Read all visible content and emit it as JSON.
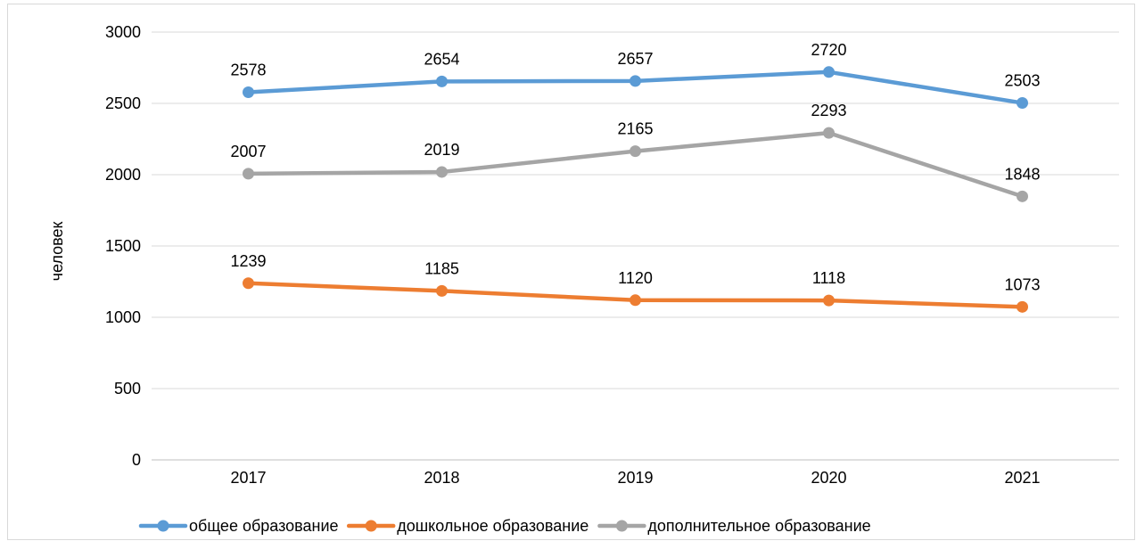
{
  "chart_data": {
    "type": "line",
    "categories": [
      "2017",
      "2018",
      "2019",
      "2020",
      "2021"
    ],
    "ylabel": "человек",
    "xlabel": "",
    "ylim": [
      0,
      3000
    ],
    "yticks": [
      "0",
      "500",
      "1000",
      "1500",
      "2000",
      "2500",
      "3000"
    ],
    "grid": true,
    "legend_position": "bottom",
    "series": [
      {
        "name": "общее образование",
        "color": "#5b9bd5",
        "values": [
          2578,
          2654,
          2657,
          2720,
          2503
        ]
      },
      {
        "name": "дошкольное образование",
        "color": "#ed7d31",
        "values": [
          1239,
          1185,
          1120,
          1118,
          1073
        ]
      },
      {
        "name": "дополнительное образование",
        "color": "#a5a5a5",
        "values": [
          2007,
          2019,
          2165,
          2293,
          1848
        ]
      }
    ]
  }
}
